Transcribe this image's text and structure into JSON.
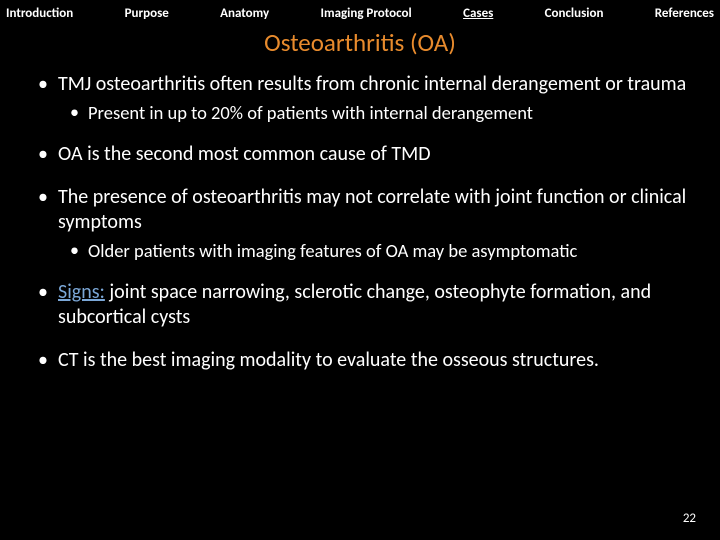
{
  "nav": {
    "items": [
      {
        "label": "Introduction",
        "active": false
      },
      {
        "label": "Purpose",
        "active": false
      },
      {
        "label": "Anatomy",
        "active": false
      },
      {
        "label": "Imaging Protocol",
        "active": false
      },
      {
        "label": "Cases",
        "active": true
      },
      {
        "label": "Conclusion",
        "active": false
      },
      {
        "label": "References",
        "active": false
      }
    ]
  },
  "title": "Osteoarthritis (OA)",
  "bullets": [
    {
      "text": "TMJ osteoarthritis often results from chronic internal derangement or trauma",
      "sub": [
        "Present in up to 20% of patients with internal derangement"
      ]
    },
    {
      "text": "OA is the second most common cause of TMD",
      "sub": []
    },
    {
      "text": "The presence of osteoarthritis may not correlate with joint function or clinical symptoms",
      "sub": [
        "Older patients with imaging features of OA may be asymptomatic"
      ]
    },
    {
      "signs_label": "Signs:",
      "signs_rest": " joint space narrowing, sclerotic change, osteophyte formation, and subcortical cysts",
      "sub": []
    },
    {
      "text": "CT is the best imaging modality to evaluate the osseous structures.",
      "sub": []
    }
  ],
  "page_number": "22",
  "colors": {
    "background": "#000000",
    "title": "#e88b2d",
    "signs": "#7ba7d7",
    "text": "#ffffff"
  }
}
